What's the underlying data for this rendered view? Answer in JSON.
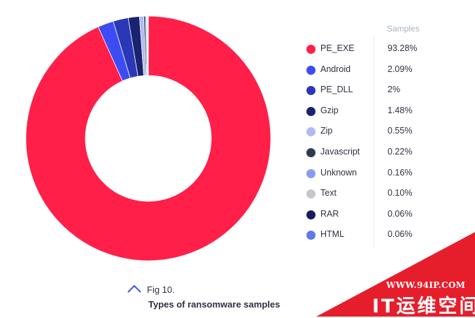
{
  "chart_data": {
    "type": "pie",
    "donut": true,
    "title": "Types of ransomware samples",
    "legend_header": "Samples",
    "legend_position": "right",
    "categories": [
      "PE_EXE",
      "Android",
      "PE_DLL",
      "Gzip",
      "Zip",
      "Javascript",
      "Unknown",
      "Text",
      "RAR",
      "HTML"
    ],
    "values": [
      93.28,
      2.09,
      2,
      1.48,
      0.55,
      0.22,
      0.16,
      0.1,
      0.06,
      0.06
    ],
    "value_labels": [
      "93.28%",
      "2.09%",
      "2%",
      "1.48%",
      "0.55%",
      "0.22%",
      "0.16%",
      "0.10%",
      "0.06%",
      "0.06%"
    ],
    "colors": [
      "#ff1f48",
      "#3d4cf2",
      "#2a38b8",
      "#1a2370",
      "#b0baf2",
      "#2f3b4d",
      "#8a9bf0",
      "#c4c6cc",
      "#161d5c",
      "#5f79e8"
    ]
  },
  "caption": {
    "figure_label": "Fig 10.",
    "figure_title": "Types of ransomware samples"
  },
  "watermark": {
    "url": "WWW.94IP.COM",
    "name": "IT运维空间"
  }
}
